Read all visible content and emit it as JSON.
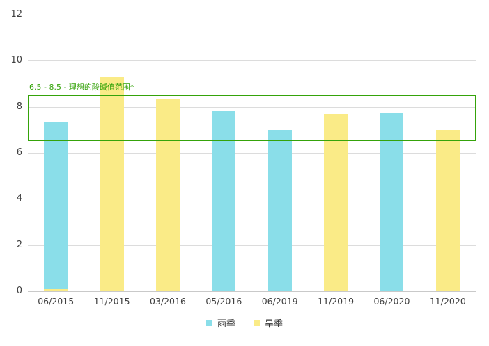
{
  "chart_data": {
    "type": "bar",
    "title": "",
    "categories": [
      "06/2015",
      "11/2015",
      "03/2016",
      "05/2016",
      "06/2019",
      "11/2019",
      "06/2020",
      "11/2020"
    ],
    "series": [
      {
        "key": "rainy-season",
        "name": "雨季",
        "color": "#8ADEE9",
        "values": [
          7.35,
          null,
          null,
          7.8,
          7.0,
          null,
          7.75,
          null
        ]
      },
      {
        "key": "dry-season",
        "name": "旱季",
        "color": "#FAEB87",
        "values": [
          0.1,
          9.3,
          8.35,
          null,
          null,
          7.7,
          null,
          7.0
        ]
      }
    ],
    "bar_layout": "overlapped-same-x",
    "ylim": [
      0,
      12
    ],
    "yticks": [
      12,
      10,
      8,
      6,
      4,
      2,
      0
    ],
    "xlabel": "",
    "ylabel": "",
    "grid": true,
    "legend_position": "bottom-center",
    "annotation": {
      "label": "6.5 - 8.5 - 理想的酸碱值范围*",
      "range_low": 6.5,
      "range_high": 8.5
    }
  },
  "colors": {
    "rainy_bar": "#8ADEE9",
    "dry_bar": "#FAEB87",
    "annotation_green": "#35A30A",
    "gridline": "#DCDCDC",
    "axis_line": "#C9C9C9",
    "tick_text": "#404040",
    "legend_text": "#333333",
    "background": "#FFFFFF"
  }
}
